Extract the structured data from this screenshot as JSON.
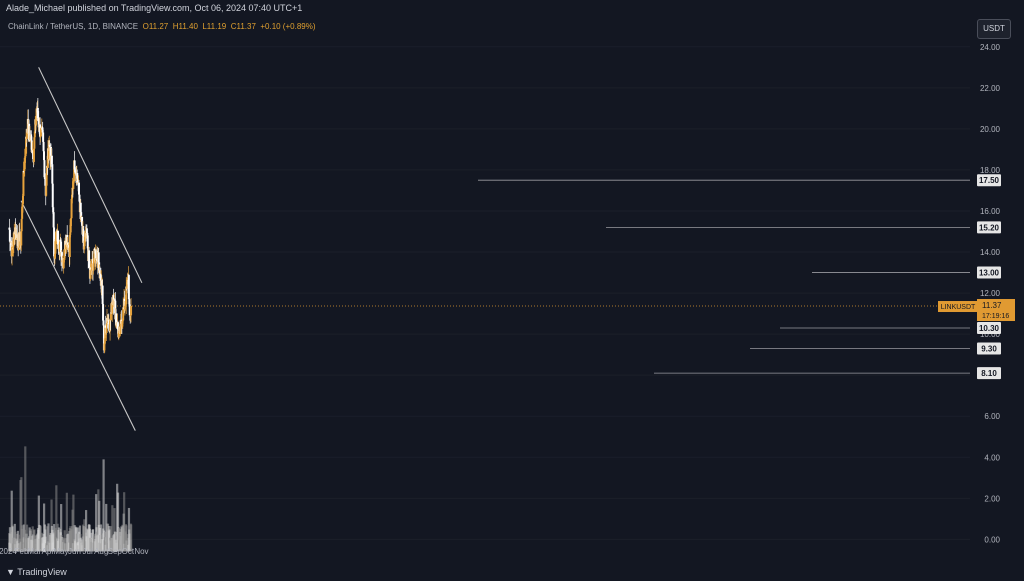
{
  "header": {
    "publisher_line": "Alade_Michael published on TradingView.com, Oct 06, 2024 07:40 UTC+1"
  },
  "legend": {
    "symbol": "ChainLink / TetherUS, 1D, BINANCE",
    "open": "O11.27",
    "high": "H11.40",
    "low": "L11.19",
    "close": "C11.37",
    "change": "+0.10 (+0.89%)"
  },
  "currency_button": "USDT",
  "footer": {
    "brand": "TradingView"
  },
  "colors": {
    "up": "#e6a23c",
    "down": "#ffffff",
    "price_line": "#e09a32",
    "channel": "#c8c8c8"
  },
  "price_tag": {
    "symbol": "LINKUSDT",
    "price": "11.37",
    "countdown": "17:19:16"
  },
  "level_labels": [
    "17.50",
    "15.20",
    "13.00",
    "10.30",
    "9.30",
    "8.10"
  ],
  "chart_data": {
    "type": "candlestick",
    "symbol": "LINKUSDT",
    "interval": "1D",
    "y_ticks": [
      24,
      22,
      20,
      18,
      16,
      14,
      12,
      10,
      8,
      6,
      4,
      2,
      0
    ],
    "y_tick_labels": [
      "24.00",
      "22.00",
      "20.00",
      "18.00",
      "16.00",
      "14.00",
      "12.00",
      "10.00",
      "8.00",
      "6.00",
      "4.00",
      "2.00",
      "0.00"
    ],
    "x_labels": [
      "2024",
      "Feb",
      "Mar",
      "Apr",
      "May",
      "Jun",
      "Jul",
      "Aug",
      "Sep",
      "Oct",
      "Nov"
    ],
    "ylim": [
      -1.2,
      25.5
    ],
    "horizontal_levels": [
      17.5,
      15.2,
      13.0,
      10.3,
      9.3,
      8.1
    ],
    "channel_upper": [
      {
        "date": "2024-03-11",
        "price": 23.0
      },
      {
        "date": "2024-11-02",
        "price": 12.5
      }
    ],
    "channel_lower": [
      {
        "date": "2024-01-31",
        "price": 16.5
      },
      {
        "date": "2024-10-18",
        "price": 5.3
      }
    ],
    "close_path": [
      {
        "date": "2024-01-01",
        "price": 15.2
      },
      {
        "date": "2024-01-08",
        "price": 14.0
      },
      {
        "date": "2024-01-15",
        "price": 15.2
      },
      {
        "date": "2024-01-22",
        "price": 14.5
      },
      {
        "date": "2024-01-28",
        "price": 14.6
      },
      {
        "date": "2024-02-04",
        "price": 18.0
      },
      {
        "date": "2024-02-12",
        "price": 20.2
      },
      {
        "date": "2024-02-19",
        "price": 19.5
      },
      {
        "date": "2024-02-26",
        "price": 18.8
      },
      {
        "date": "2024-03-04",
        "price": 21.0
      },
      {
        "date": "2024-03-11",
        "price": 20.0
      },
      {
        "date": "2024-03-18",
        "price": 19.5
      },
      {
        "date": "2024-03-25",
        "price": 17.0
      },
      {
        "date": "2024-04-01",
        "price": 19.3
      },
      {
        "date": "2024-04-08",
        "price": 18.2
      },
      {
        "date": "2024-04-13",
        "price": 14.0
      },
      {
        "date": "2024-04-20",
        "price": 14.8
      },
      {
        "date": "2024-04-27",
        "price": 14.3
      },
      {
        "date": "2024-05-04",
        "price": 13.6
      },
      {
        "date": "2024-05-11",
        "price": 14.8
      },
      {
        "date": "2024-05-18",
        "price": 14.2
      },
      {
        "date": "2024-05-25",
        "price": 17.0
      },
      {
        "date": "2024-05-30",
        "price": 18.4
      },
      {
        "date": "2024-06-06",
        "price": 17.5
      },
      {
        "date": "2024-06-13",
        "price": 15.8
      },
      {
        "date": "2024-06-20",
        "price": 14.2
      },
      {
        "date": "2024-06-27",
        "price": 14.8
      },
      {
        "date": "2024-07-04",
        "price": 12.8
      },
      {
        "date": "2024-07-11",
        "price": 13.5
      },
      {
        "date": "2024-07-18",
        "price": 14.0
      },
      {
        "date": "2024-07-25",
        "price": 13.4
      },
      {
        "date": "2024-08-01",
        "price": 12.0
      },
      {
        "date": "2024-08-05",
        "price": 9.5
      },
      {
        "date": "2024-08-12",
        "price": 10.8
      },
      {
        "date": "2024-08-19",
        "price": 10.5
      },
      {
        "date": "2024-08-26",
        "price": 12.0
      },
      {
        "date": "2024-09-02",
        "price": 10.8
      },
      {
        "date": "2024-09-09",
        "price": 9.8
      },
      {
        "date": "2024-09-16",
        "price": 10.9
      },
      {
        "date": "2024-09-23",
        "price": 11.6
      },
      {
        "date": "2024-09-30",
        "price": 12.8
      },
      {
        "date": "2024-10-03",
        "price": 10.5
      },
      {
        "date": "2024-10-06",
        "price": 11.37
      }
    ],
    "last_price": 11.37
  }
}
